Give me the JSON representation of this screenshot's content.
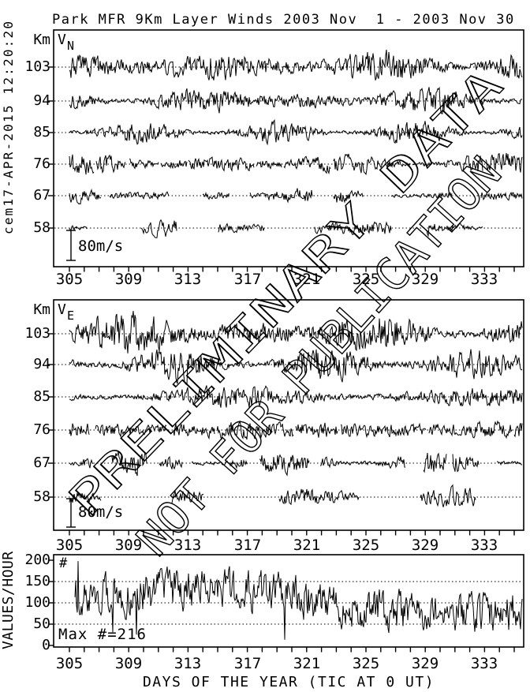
{
  "title": "Park MFR 9Km Layer Winds 2003 Nov  1 - 2003 Nov 30",
  "generated_stamp": "cem17-APR-2015 12:20:20",
  "watermark": {
    "line1": "PRELIMINARY DATA",
    "line2": "NOT FOR PUBLICATION"
  },
  "colors": {
    "ink": "#000000",
    "background": "#ffffff"
  },
  "x_axis": {
    "title": "DAYS OF THE YEAR (TIC AT 0 UT)",
    "tick_labels": [
      "305",
      "309",
      "313",
      "317",
      "321",
      "325",
      "329",
      "333"
    ],
    "range_days": [
      305,
      335
    ],
    "minor_tick_step_days": 1,
    "label_step_days": 4
  },
  "wind_panels": [
    {
      "name": "northward-wind",
      "component_letter": "V",
      "component_sub": "N",
      "axis_unit": "Km",
      "altitude_labels": [
        "103",
        "94",
        "85",
        "76",
        "67",
        "58"
      ],
      "scale_bar_label": "80m/s"
    },
    {
      "name": "eastward-wind",
      "component_letter": "V",
      "component_sub": "E",
      "axis_unit": "Km",
      "altitude_labels": [
        "103",
        "94",
        "85",
        "76",
        "67",
        "58"
      ],
      "scale_bar_label": "80m/s"
    }
  ],
  "counts_panel": {
    "ylabel": "VALUES/HOUR",
    "tick_labels": [
      "200",
      "150",
      "100",
      "50",
      "0"
    ],
    "series_symbol": "#",
    "max_annotation": "Max #=216"
  },
  "chart_data": [
    {
      "type": "line",
      "title": "VN northward wind traces per altitude layer",
      "x": {
        "label": "day of year 2003",
        "min": 305,
        "max": 335,
        "tick_step": 1,
        "label_step": 4
      },
      "y": {
        "label": "altitude Km",
        "layers_km": [
          103,
          94,
          85,
          76,
          67,
          58
        ]
      },
      "amplitude_scale": {
        "bar_label": "80m/s",
        "bar_m_per_s": 80
      },
      "series": [
        {
          "layer_km": 103,
          "rms_amplitude_m_per_s": 38,
          "coverage": 1.0
        },
        {
          "layer_km": 94,
          "rms_amplitude_m_per_s": 27,
          "coverage": 1.0
        },
        {
          "layer_km": 85,
          "rms_amplitude_m_per_s": 21,
          "coverage": 1.0
        },
        {
          "layer_km": 76,
          "rms_amplitude_m_per_s": 22,
          "coverage": 0.97
        },
        {
          "layer_km": 67,
          "rms_amplitude_m_per_s": 17,
          "coverage": 0.78
        },
        {
          "layer_km": 58,
          "rms_amplitude_m_per_s": 20,
          "coverage": 0.45
        }
      ]
    },
    {
      "type": "line",
      "title": "VE eastward wind traces per altitude layer",
      "x": {
        "label": "day of year 2003",
        "min": 305,
        "max": 335,
        "tick_step": 1,
        "label_step": 4
      },
      "y": {
        "label": "altitude Km",
        "layers_km": [
          103,
          94,
          85,
          76,
          67,
          58
        ]
      },
      "amplitude_scale": {
        "bar_label": "80m/s",
        "bar_m_per_s": 80
      },
      "series": [
        {
          "layer_km": 103,
          "rms_amplitude_m_per_s": 42,
          "coverage": 1.0
        },
        {
          "layer_km": 94,
          "rms_amplitude_m_per_s": 33,
          "coverage": 1.0
        },
        {
          "layer_km": 85,
          "rms_amplitude_m_per_s": 23,
          "coverage": 1.0
        },
        {
          "layer_km": 76,
          "rms_amplitude_m_per_s": 26,
          "coverage": 0.96
        },
        {
          "layer_km": 67,
          "rms_amplitude_m_per_s": 22,
          "coverage": 0.85
        },
        {
          "layer_km": 58,
          "rms_amplitude_m_per_s": 20,
          "coverage": 0.5
        }
      ]
    },
    {
      "type": "line",
      "title": "Measurement counts per hour",
      "x": {
        "label": "day of year 2003",
        "min": 305,
        "max": 335,
        "tick_step": 1,
        "label_step": 4
      },
      "y": {
        "label": "VALUES/HOUR",
        "min": 0,
        "max": 200,
        "gridlines": [
          50,
          100,
          150
        ]
      },
      "series": [
        {
          "name": "values-per-hour",
          "mean": 100,
          "observed_max": 216,
          "observed_min": 10
        }
      ]
    }
  ]
}
